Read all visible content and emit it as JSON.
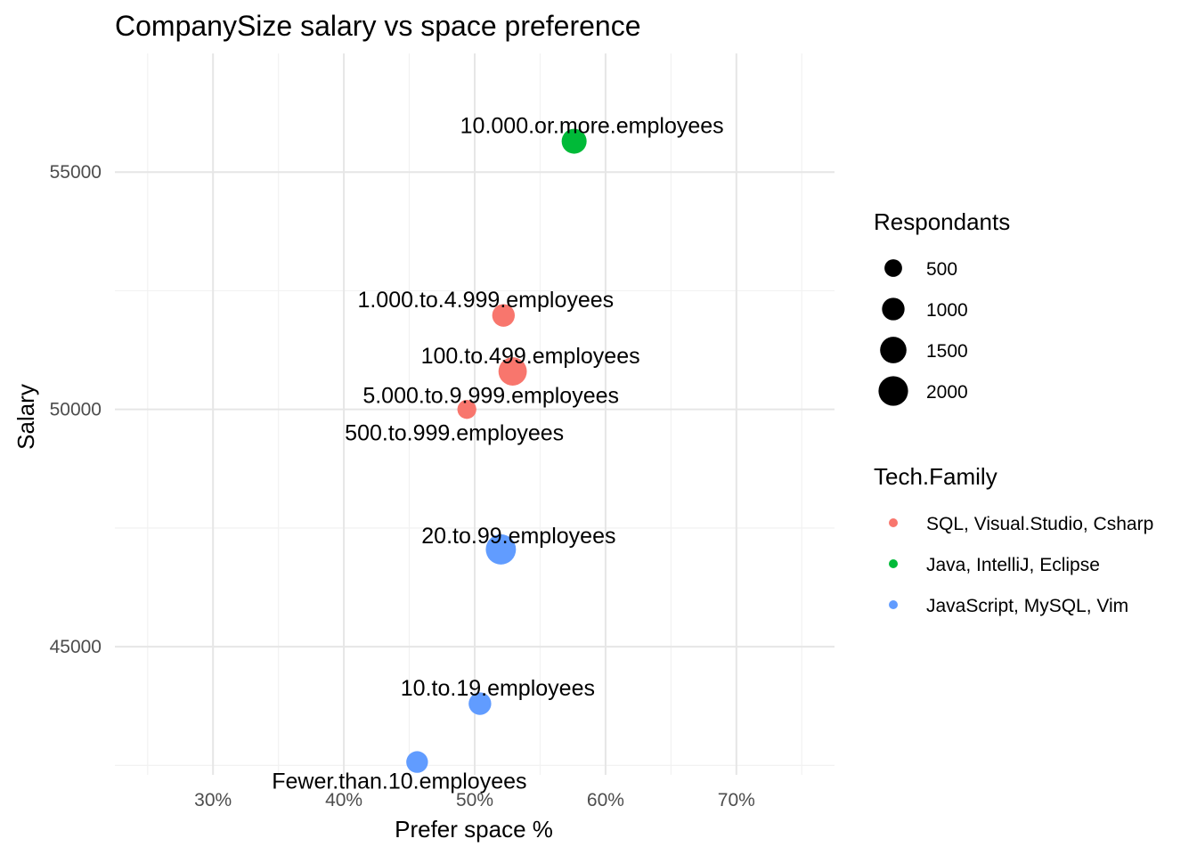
{
  "chart_data": {
    "type": "scatter",
    "title": "CompanySize salary vs space preference",
    "xlabel": "Prefer space %",
    "ylabel": "Salary",
    "xlim": [
      0.225,
      0.775
    ],
    "ylim": [
      42300,
      57500
    ],
    "x_ticks": [
      0.3,
      0.4,
      0.5,
      0.6,
      0.7
    ],
    "x_tick_labels": [
      "30%",
      "40%",
      "50%",
      "60%",
      "70%"
    ],
    "y_ticks": [
      45000,
      50000,
      55000
    ],
    "y_tick_labels": [
      "45000",
      "50000",
      "55000"
    ],
    "grid": true,
    "legend_position": "right",
    "size_legend": {
      "title": "Respondants",
      "entries": [
        {
          "label": "500",
          "value": 500
        },
        {
          "label": "1000",
          "value": 1000
        },
        {
          "label": "1500",
          "value": 1500
        },
        {
          "label": "2000",
          "value": 2000
        }
      ]
    },
    "color_legend": {
      "title": "Tech.Family",
      "entries": [
        {
          "label": "SQL, Visual.Studio, Csharp",
          "color": "#F8766D"
        },
        {
          "label": "Java, IntelliJ, Eclipse",
          "color": "#00BA38"
        },
        {
          "label": "JavaScript, MySQL, Vim",
          "color": "#619CFF"
        }
      ]
    },
    "points": [
      {
        "label": "10.000.or.more.employees",
        "x": 0.576,
        "y": 55650,
        "size": 1300,
        "group": 1
      },
      {
        "label": "1.000.to.4.999.employees",
        "x": 0.522,
        "y": 51980,
        "size": 1000,
        "group": 0
      },
      {
        "label": "100.to.499.employees",
        "x": 0.529,
        "y": 50800,
        "size": 1800,
        "group": 0
      },
      {
        "label": "5.000.to.9.999.employees",
        "x": 0.494,
        "y": 50000,
        "size": 600,
        "group": 0
      },
      {
        "label": "500.to.999.employees",
        "x": 0.494,
        "y": 50000,
        "size": 600,
        "group": 0
      },
      {
        "label": "20.to.99.employees",
        "x": 0.52,
        "y": 47050,
        "size": 2100,
        "group": 2
      },
      {
        "label": "10.to.19.employees",
        "x": 0.504,
        "y": 43800,
        "size": 1000,
        "group": 2
      },
      {
        "label": "Fewer.than.10.employees",
        "x": 0.456,
        "y": 42570,
        "size": 900,
        "group": 2
      }
    ]
  }
}
